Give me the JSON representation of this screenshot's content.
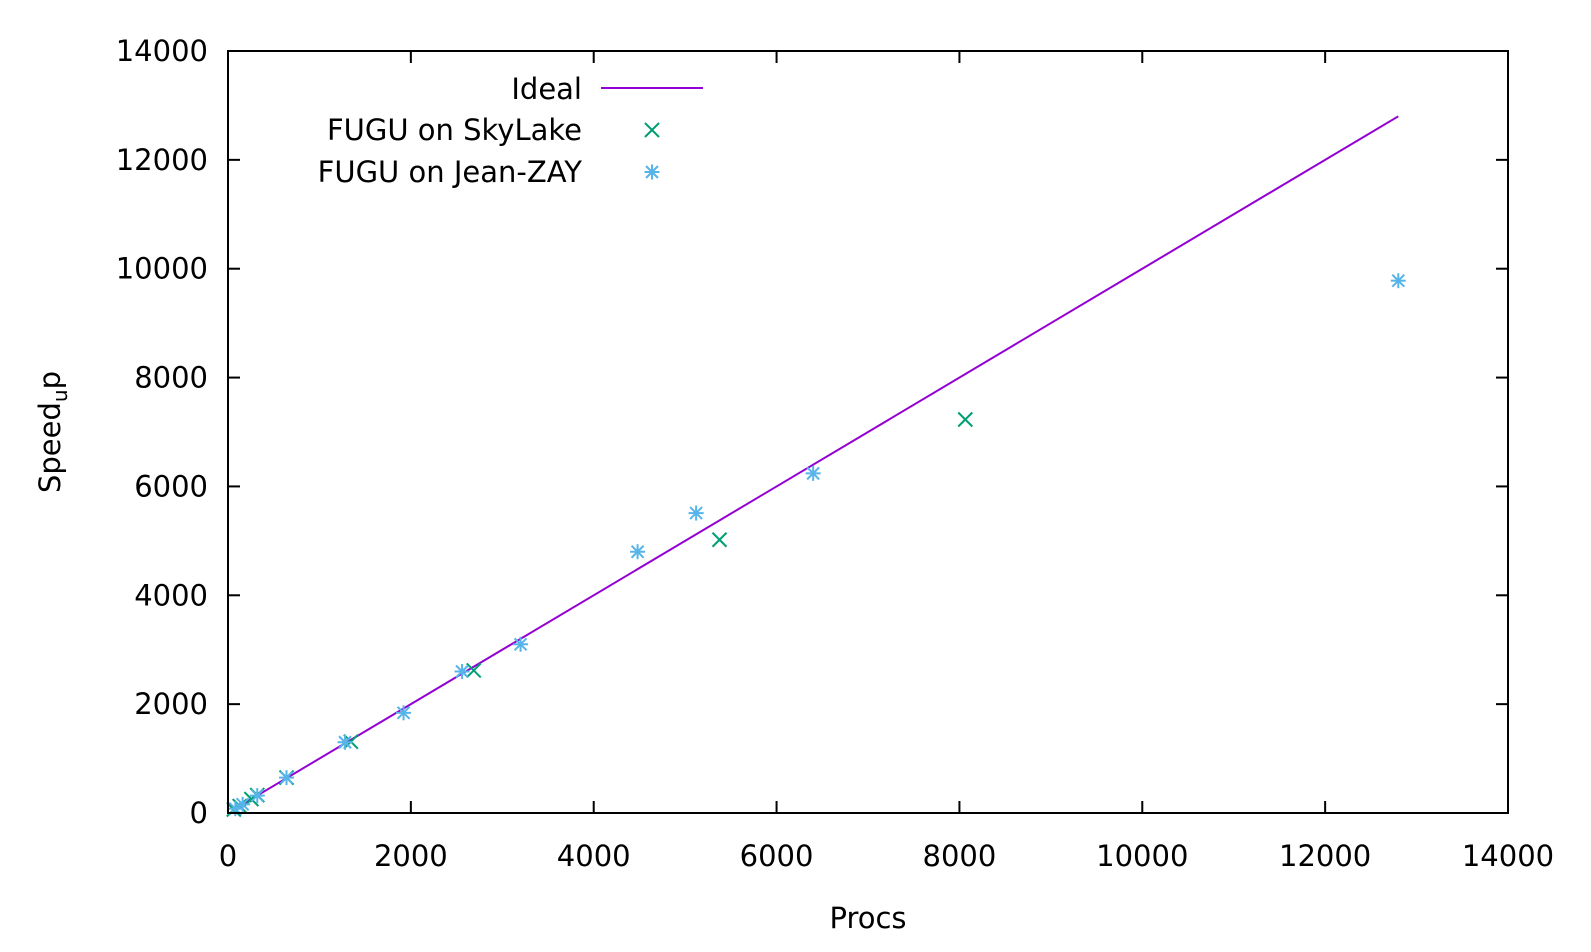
{
  "chart_data": {
    "type": "scatter",
    "title": "",
    "xlabel": "Procs",
    "ylabel_main": "Speed",
    "ylabel_sub": "u",
    "ylabel_tail": "p",
    "xlim": [
      0,
      14000
    ],
    "ylim": [
      0,
      14000
    ],
    "x_ticks": [
      0,
      2000,
      4000,
      6000,
      8000,
      10000,
      12000,
      14000
    ],
    "y_ticks": [
      0,
      2000,
      4000,
      6000,
      8000,
      10000,
      12000,
      14000
    ],
    "grid": false,
    "legend_position": "top-left",
    "series": [
      {
        "name": "Ideal",
        "kind": "line",
        "color": "#9400d3",
        "x": [
          64,
          12800
        ],
        "y": [
          64,
          12800
        ]
      },
      {
        "name": "FUGU on SkyLake",
        "kind": "points",
        "marker": "x",
        "color": "#009e73",
        "x": [
          64,
          128,
          256,
          320,
          640,
          1344,
          2688,
          5376,
          8064
        ],
        "y": [
          64,
          128,
          256,
          330,
          650,
          1310,
          2620,
          5020,
          7230
        ]
      },
      {
        "name": "FUGU on Jean-ZAY",
        "kind": "points",
        "marker": "asterisk",
        "color": "#56b4e9",
        "x": [
          80,
          160,
          320,
          640,
          1280,
          1920,
          2560,
          3200,
          4480,
          5120,
          6400,
          12800
        ],
        "y": [
          80,
          160,
          320,
          650,
          1300,
          1840,
          2600,
          3100,
          4800,
          5510,
          6240,
          9780
        ]
      }
    ]
  }
}
